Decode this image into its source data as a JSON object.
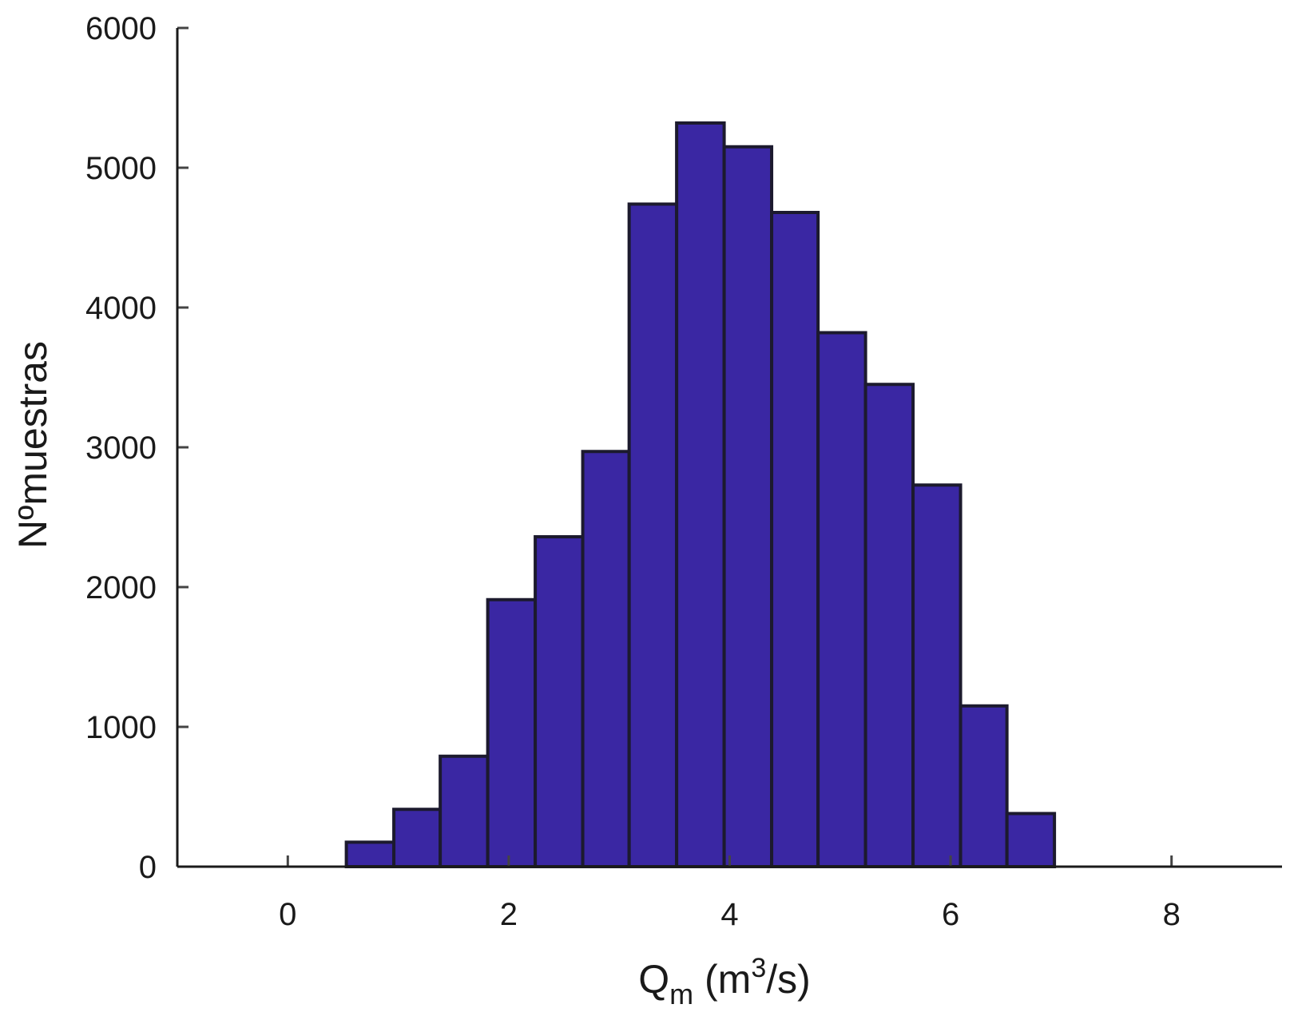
{
  "chart_data": {
    "type": "bar",
    "subtype": "histogram",
    "bins": [
      {
        "x0": 0.53,
        "x1": 0.96,
        "value": 175
      },
      {
        "x0": 0.96,
        "x1": 1.38,
        "value": 410
      },
      {
        "x0": 1.38,
        "x1": 1.81,
        "value": 790
      },
      {
        "x0": 1.81,
        "x1": 2.24,
        "value": 1910
      },
      {
        "x0": 2.24,
        "x1": 2.67,
        "value": 2360
      },
      {
        "x0": 2.67,
        "x1": 3.09,
        "value": 2970
      },
      {
        "x0": 3.09,
        "x1": 3.52,
        "value": 4740
      },
      {
        "x0": 3.52,
        "x1": 3.95,
        "value": 5320
      },
      {
        "x0": 3.95,
        "x1": 4.38,
        "value": 5150
      },
      {
        "x0": 4.38,
        "x1": 4.8,
        "value": 4680
      },
      {
        "x0": 4.8,
        "x1": 5.23,
        "value": 3820
      },
      {
        "x0": 5.23,
        "x1": 5.66,
        "value": 3450
      },
      {
        "x0": 5.66,
        "x1": 6.09,
        "value": 2730
      },
      {
        "x0": 6.09,
        "x1": 6.51,
        "value": 1150
      },
      {
        "x0": 6.51,
        "x1": 6.94,
        "value": 380
      }
    ],
    "bar_color": "#3a27a3",
    "xlim": [
      -1,
      9
    ],
    "ylim": [
      0,
      6000
    ],
    "xticks": [
      "0",
      "2",
      "4",
      "6",
      "8"
    ],
    "xtick_values": [
      0,
      2,
      4,
      6,
      8
    ],
    "yticks": [
      "0",
      "1000",
      "2000",
      "3000",
      "4000",
      "5000",
      "6000"
    ],
    "ytick_values": [
      0,
      1000,
      2000,
      3000,
      4000,
      5000,
      6000
    ],
    "xlabel": {
      "main": "Q",
      "sub": "m",
      "pre": "(m",
      "sup": "3",
      "post": "/s)"
    },
    "ylabel": "Nºmuestras",
    "grid": false
  }
}
